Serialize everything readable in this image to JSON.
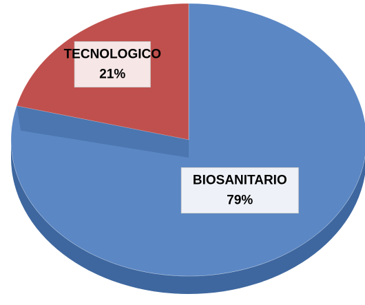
{
  "chart_data": {
    "type": "pie",
    "categories": [
      "BIOSANITARIO",
      "TECNOLOGICO"
    ],
    "values": [
      79,
      21
    ],
    "value_labels": [
      "79%",
      "21%"
    ],
    "colors": [
      "#5b87c4",
      "#c0504d"
    ],
    "side_colors": [
      "#3e679f",
      "#8f3533"
    ],
    "label_fills": [
      "#eef2f8",
      "#f6e6e6"
    ]
  }
}
